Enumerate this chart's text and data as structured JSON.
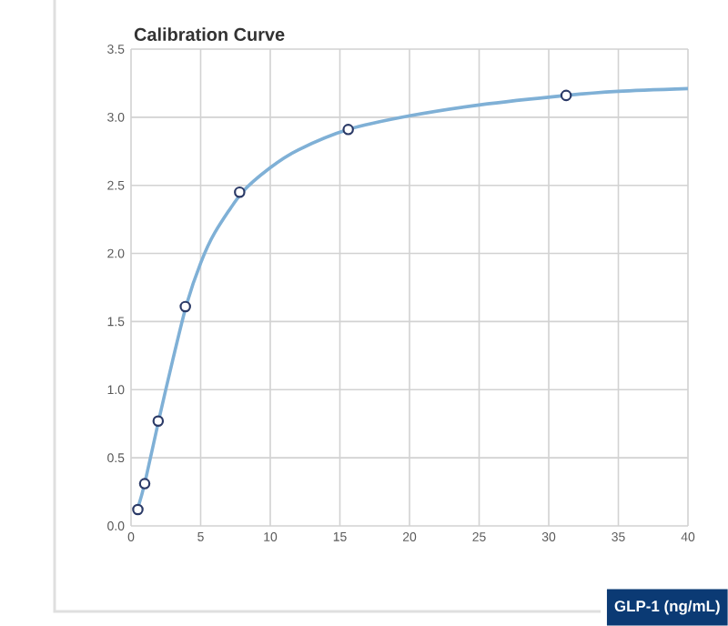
{
  "chart_data": {
    "type": "scatter",
    "title": "Calibration Curve",
    "xlabel": "GLP-1 (ng/mL)",
    "xlim": [
      0,
      40
    ],
    "xticks": [
      0,
      5,
      10,
      15,
      20,
      25,
      30,
      35,
      40
    ],
    "ylim": [
      0,
      3.5
    ],
    "yticks": [
      {
        "value": 0,
        "label": "0.0"
      },
      {
        "value": 0.5,
        "label": "0.5"
      },
      {
        "value": 1,
        "label": "1.0"
      },
      {
        "value": 1.5,
        "label": "1.5"
      },
      {
        "value": 2,
        "label": "2.0"
      },
      {
        "value": 2.5,
        "label": "2.5"
      },
      {
        "value": 3,
        "label": "3.0"
      },
      {
        "value": 3.5,
        "label": "3.5"
      }
    ],
    "grid": true,
    "series": [
      {
        "type": "line",
        "color": "#7fb0d6",
        "marker": "none",
        "line_style": "solid",
        "x": [
          0.49,
          1,
          2,
          3,
          4,
          5,
          6,
          8,
          10,
          12,
          15.6,
          20,
          25,
          31.25,
          35,
          40
        ],
        "values": [
          0.13,
          0.32,
          0.78,
          1.22,
          1.63,
          1.93,
          2.15,
          2.45,
          2.63,
          2.76,
          2.91,
          3.01,
          3.09,
          3.16,
          3.19,
          3.21
        ]
      },
      {
        "color": "#2b3a67",
        "marker": "circle",
        "x": [
          0.49,
          0.98,
          1.95,
          3.9,
          7.8,
          15.6,
          31.25
        ],
        "values": [
          0.12,
          0.31,
          0.77,
          1.61,
          2.45,
          2.91,
          3.16
        ]
      }
    ]
  }
}
